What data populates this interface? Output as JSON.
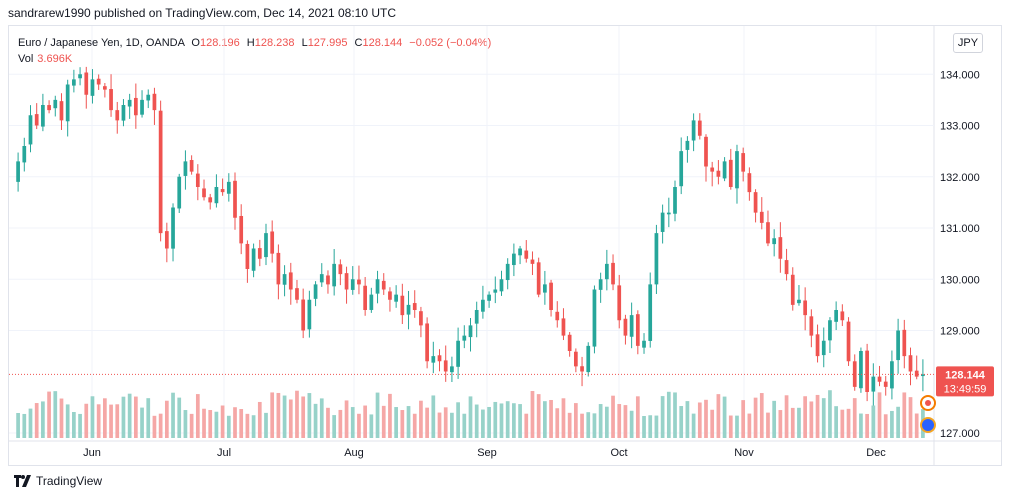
{
  "header": {
    "publish_text": "sandrarew1990 published on TradingView.com, Dec 14, 2021 08:10 UTC"
  },
  "legend": {
    "symbol": "Euro / Japanese Yen, 1D, OANDA",
    "o_label": "O",
    "o": "128.196",
    "h_label": "H",
    "h": "128.238",
    "l_label": "L",
    "l": "127.995",
    "c_label": "C",
    "c": "128.144",
    "change": "−0.052 (−0.04%)",
    "vol_label": "Vol",
    "vol": "3.696K"
  },
  "currency_button": "JPY",
  "price_badge": {
    "price": "128.144",
    "countdown": "13:49:59"
  },
  "footer": {
    "brand": "TradingView"
  },
  "colors": {
    "up": "#26a69a",
    "down": "#ef5350",
    "vol_up": "#97d2c9",
    "vol_down": "#f5a7a6"
  },
  "chart_data": {
    "type": "candlestick",
    "y_axis_labels": [
      "134.000",
      "133.000",
      "132.000",
      "131.000",
      "130.000",
      "129.000",
      "127.000"
    ],
    "x_axis_labels": [
      "Jun",
      "Jul",
      "Aug",
      "Sep",
      "Oct",
      "Nov",
      "Dec"
    ],
    "ylim": [
      127.0,
      134.2
    ],
    "last_price": 128.144,
    "closes": [
      132.3,
      132.6,
      133.2,
      133.0,
      133.4,
      133.3,
      133.5,
      133.1,
      133.8,
      133.9,
      134.0,
      133.6,
      133.9,
      133.8,
      133.7,
      133.3,
      133.1,
      133.4,
      133.5,
      133.2,
      133.5,
      133.6,
      133.3,
      130.9,
      130.6,
      131.4,
      132.0,
      132.3,
      132.1,
      131.8,
      131.6,
      131.5,
      131.8,
      131.7,
      131.9,
      131.2,
      130.7,
      130.2,
      130.6,
      130.4,
      130.9,
      130.5,
      129.9,
      130.1,
      129.8,
      129.6,
      129.0,
      129.6,
      129.9,
      130.1,
      129.9,
      130.3,
      130.1,
      129.8,
      130.0,
      129.9,
      129.4,
      129.7,
      130.0,
      129.8,
      129.6,
      129.7,
      129.3,
      129.5,
      129.4,
      129.1,
      128.4,
      128.5,
      128.4,
      128.2,
      128.3,
      128.8,
      128.9,
      129.1,
      129.4,
      129.6,
      129.7,
      129.8,
      130.0,
      130.3,
      130.5,
      130.6,
      130.4,
      130.3,
      129.7,
      129.9,
      129.4,
      129.2,
      128.9,
      128.6,
      128.3,
      128.2,
      128.7,
      129.8,
      130.0,
      130.3,
      129.9,
      129.2,
      128.9,
      129.3,
      128.7,
      128.8,
      129.9,
      130.9,
      131.3,
      131.3,
      131.8,
      132.5,
      132.7,
      133.1,
      132.8,
      132.2,
      132.1,
      132.0,
      132.3,
      131.8,
      132.5,
      132.1,
      131.7,
      131.3,
      131.1,
      130.7,
      130.8,
      130.4,
      130.1,
      129.5,
      129.6,
      129.3,
      128.9,
      128.5,
      128.8,
      129.2,
      129.4,
      129.2,
      128.4,
      127.9,
      128.6,
      127.8,
      128.1,
      128.0,
      127.9,
      128.4,
      129.0,
      128.5,
      128.2,
      128.1,
      128.144
    ],
    "volume": {
      "series": "Vol",
      "last": "3.696K"
    }
  }
}
